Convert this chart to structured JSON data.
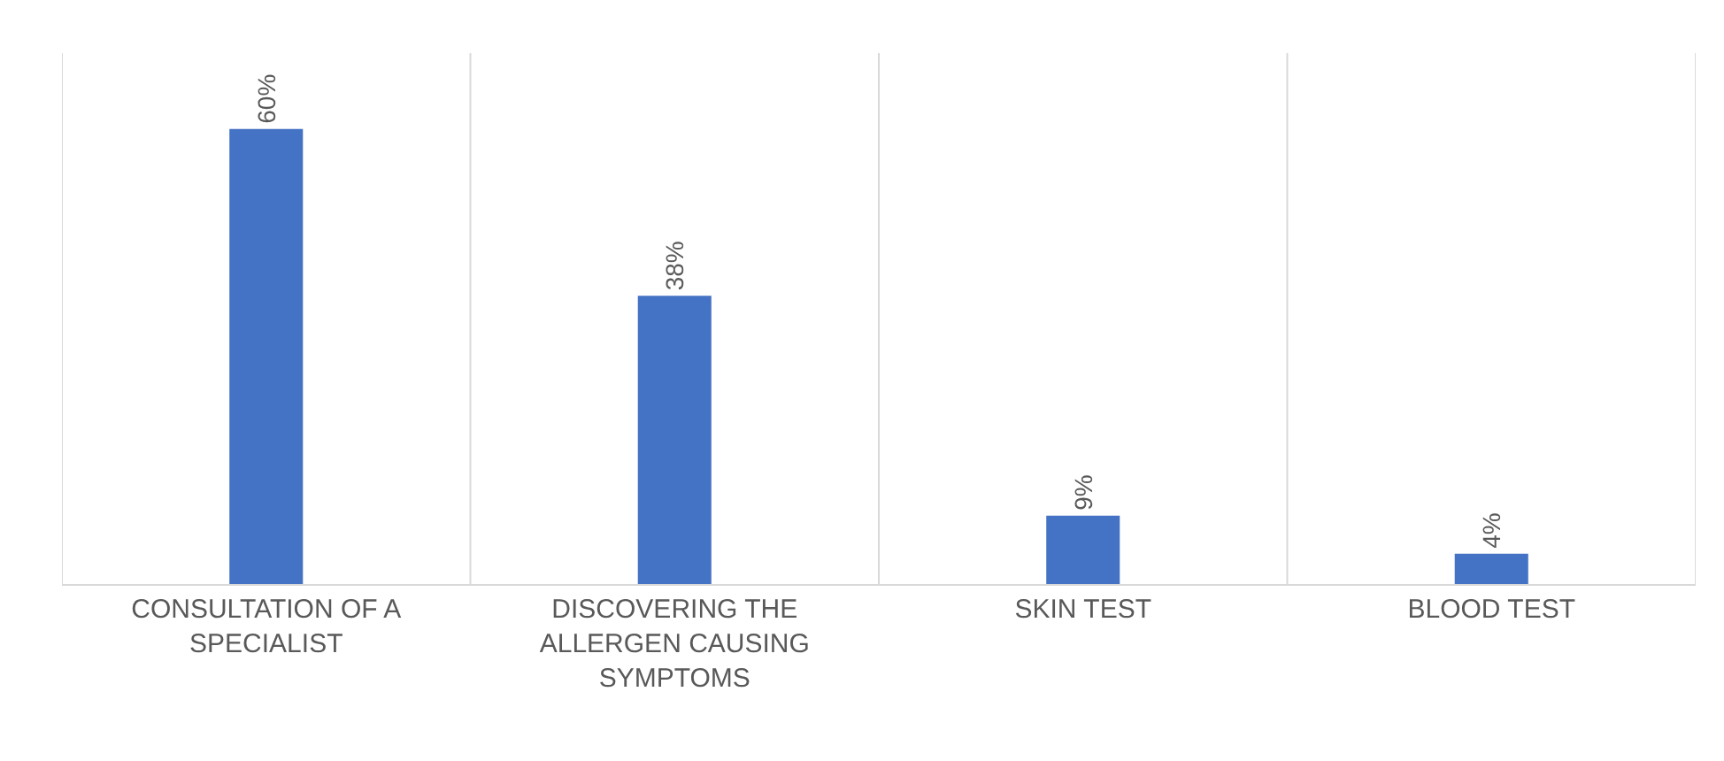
{
  "chart_data": {
    "type": "bar",
    "categories": [
      "CONSULTATION OF A SPECIALIST",
      "DISCOVERING THE ALLERGEN CAUSING SYMPTOMS",
      "SKIN TEST",
      "BLOOD TEST"
    ],
    "values": [
      60,
      38,
      9,
      4
    ],
    "value_labels": [
      "60%",
      "38%",
      "9%",
      "4%"
    ],
    "color": "#4472c4",
    "ylim": [
      0,
      70
    ],
    "grid": "x",
    "tick_labels": "x"
  }
}
